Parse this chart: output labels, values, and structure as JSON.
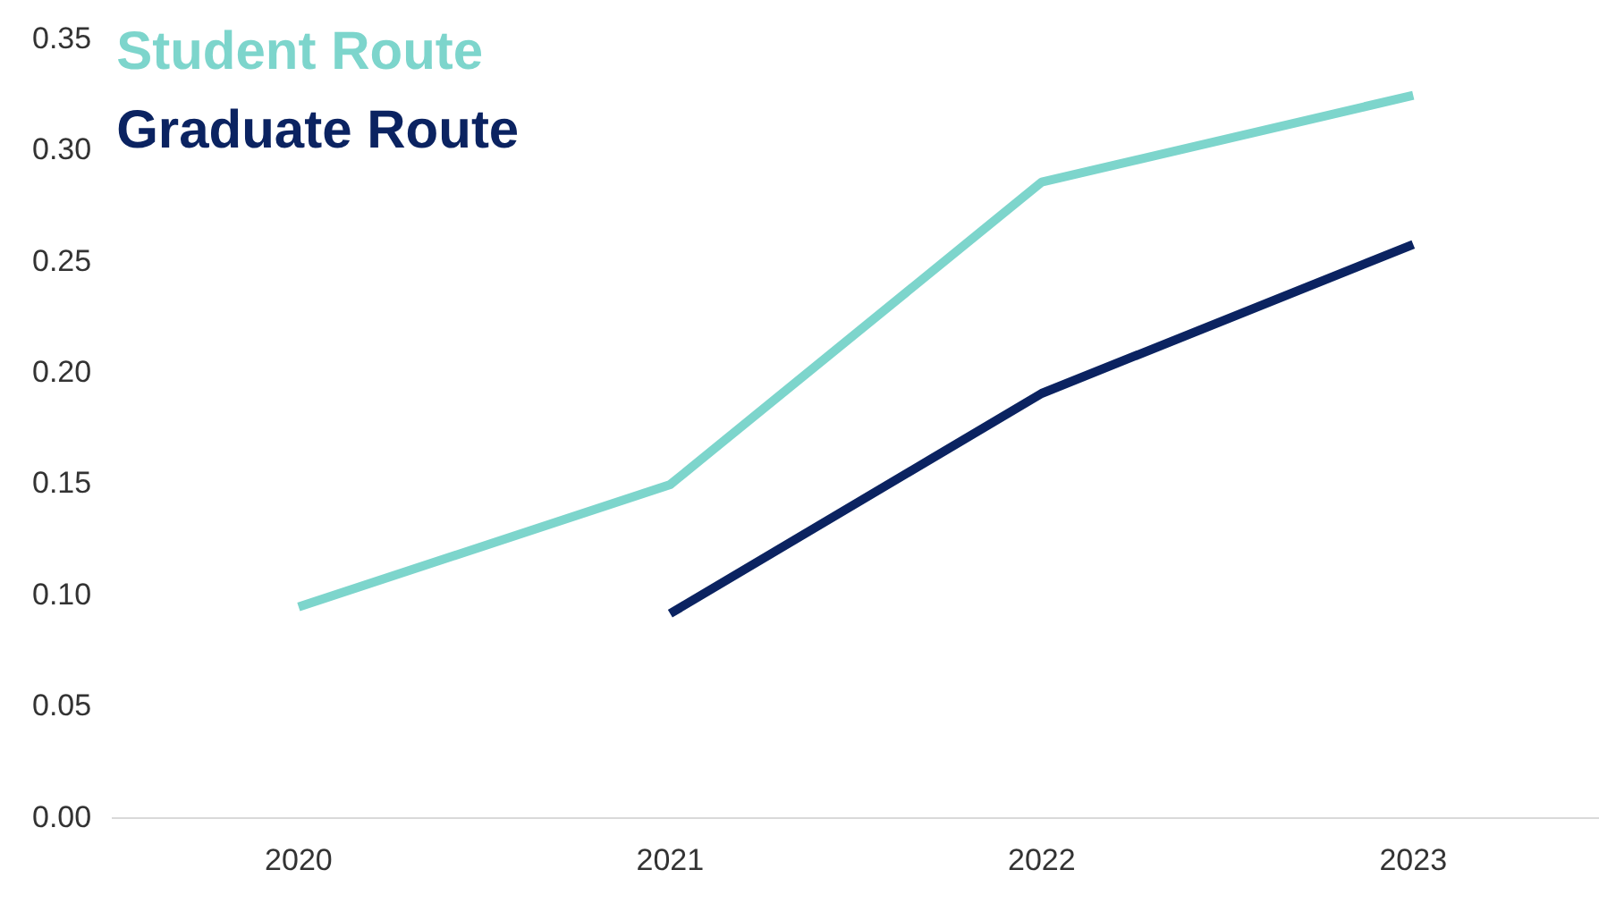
{
  "chart_data": {
    "type": "line",
    "categories": [
      "2020",
      "2021",
      "2022",
      "2023"
    ],
    "series": [
      {
        "name": "Student Route",
        "color": "#7dd5cc",
        "values": [
          0.095,
          0.15,
          0.286,
          0.325
        ]
      },
      {
        "name": "Graduate Route",
        "color": "#0b2361",
        "values": [
          null,
          0.092,
          0.191,
          0.258
        ]
      }
    ],
    "ylim": [
      0,
      0.35
    ],
    "yticks": [
      {
        "value": 0,
        "label": "0.00"
      },
      {
        "value": 0.05,
        "label": "0.05"
      },
      {
        "value": 0.1,
        "label": "0.10"
      },
      {
        "value": 0.15,
        "label": "0.15"
      },
      {
        "value": 0.2,
        "label": "0.20"
      },
      {
        "value": 0.25,
        "label": "0.25"
      },
      {
        "value": 0.3,
        "label": "0.30"
      },
      {
        "value": 0.35,
        "label": "0.35"
      }
    ],
    "grid": false,
    "legend": "top left",
    "marker": "none",
    "line_style": "solid"
  }
}
